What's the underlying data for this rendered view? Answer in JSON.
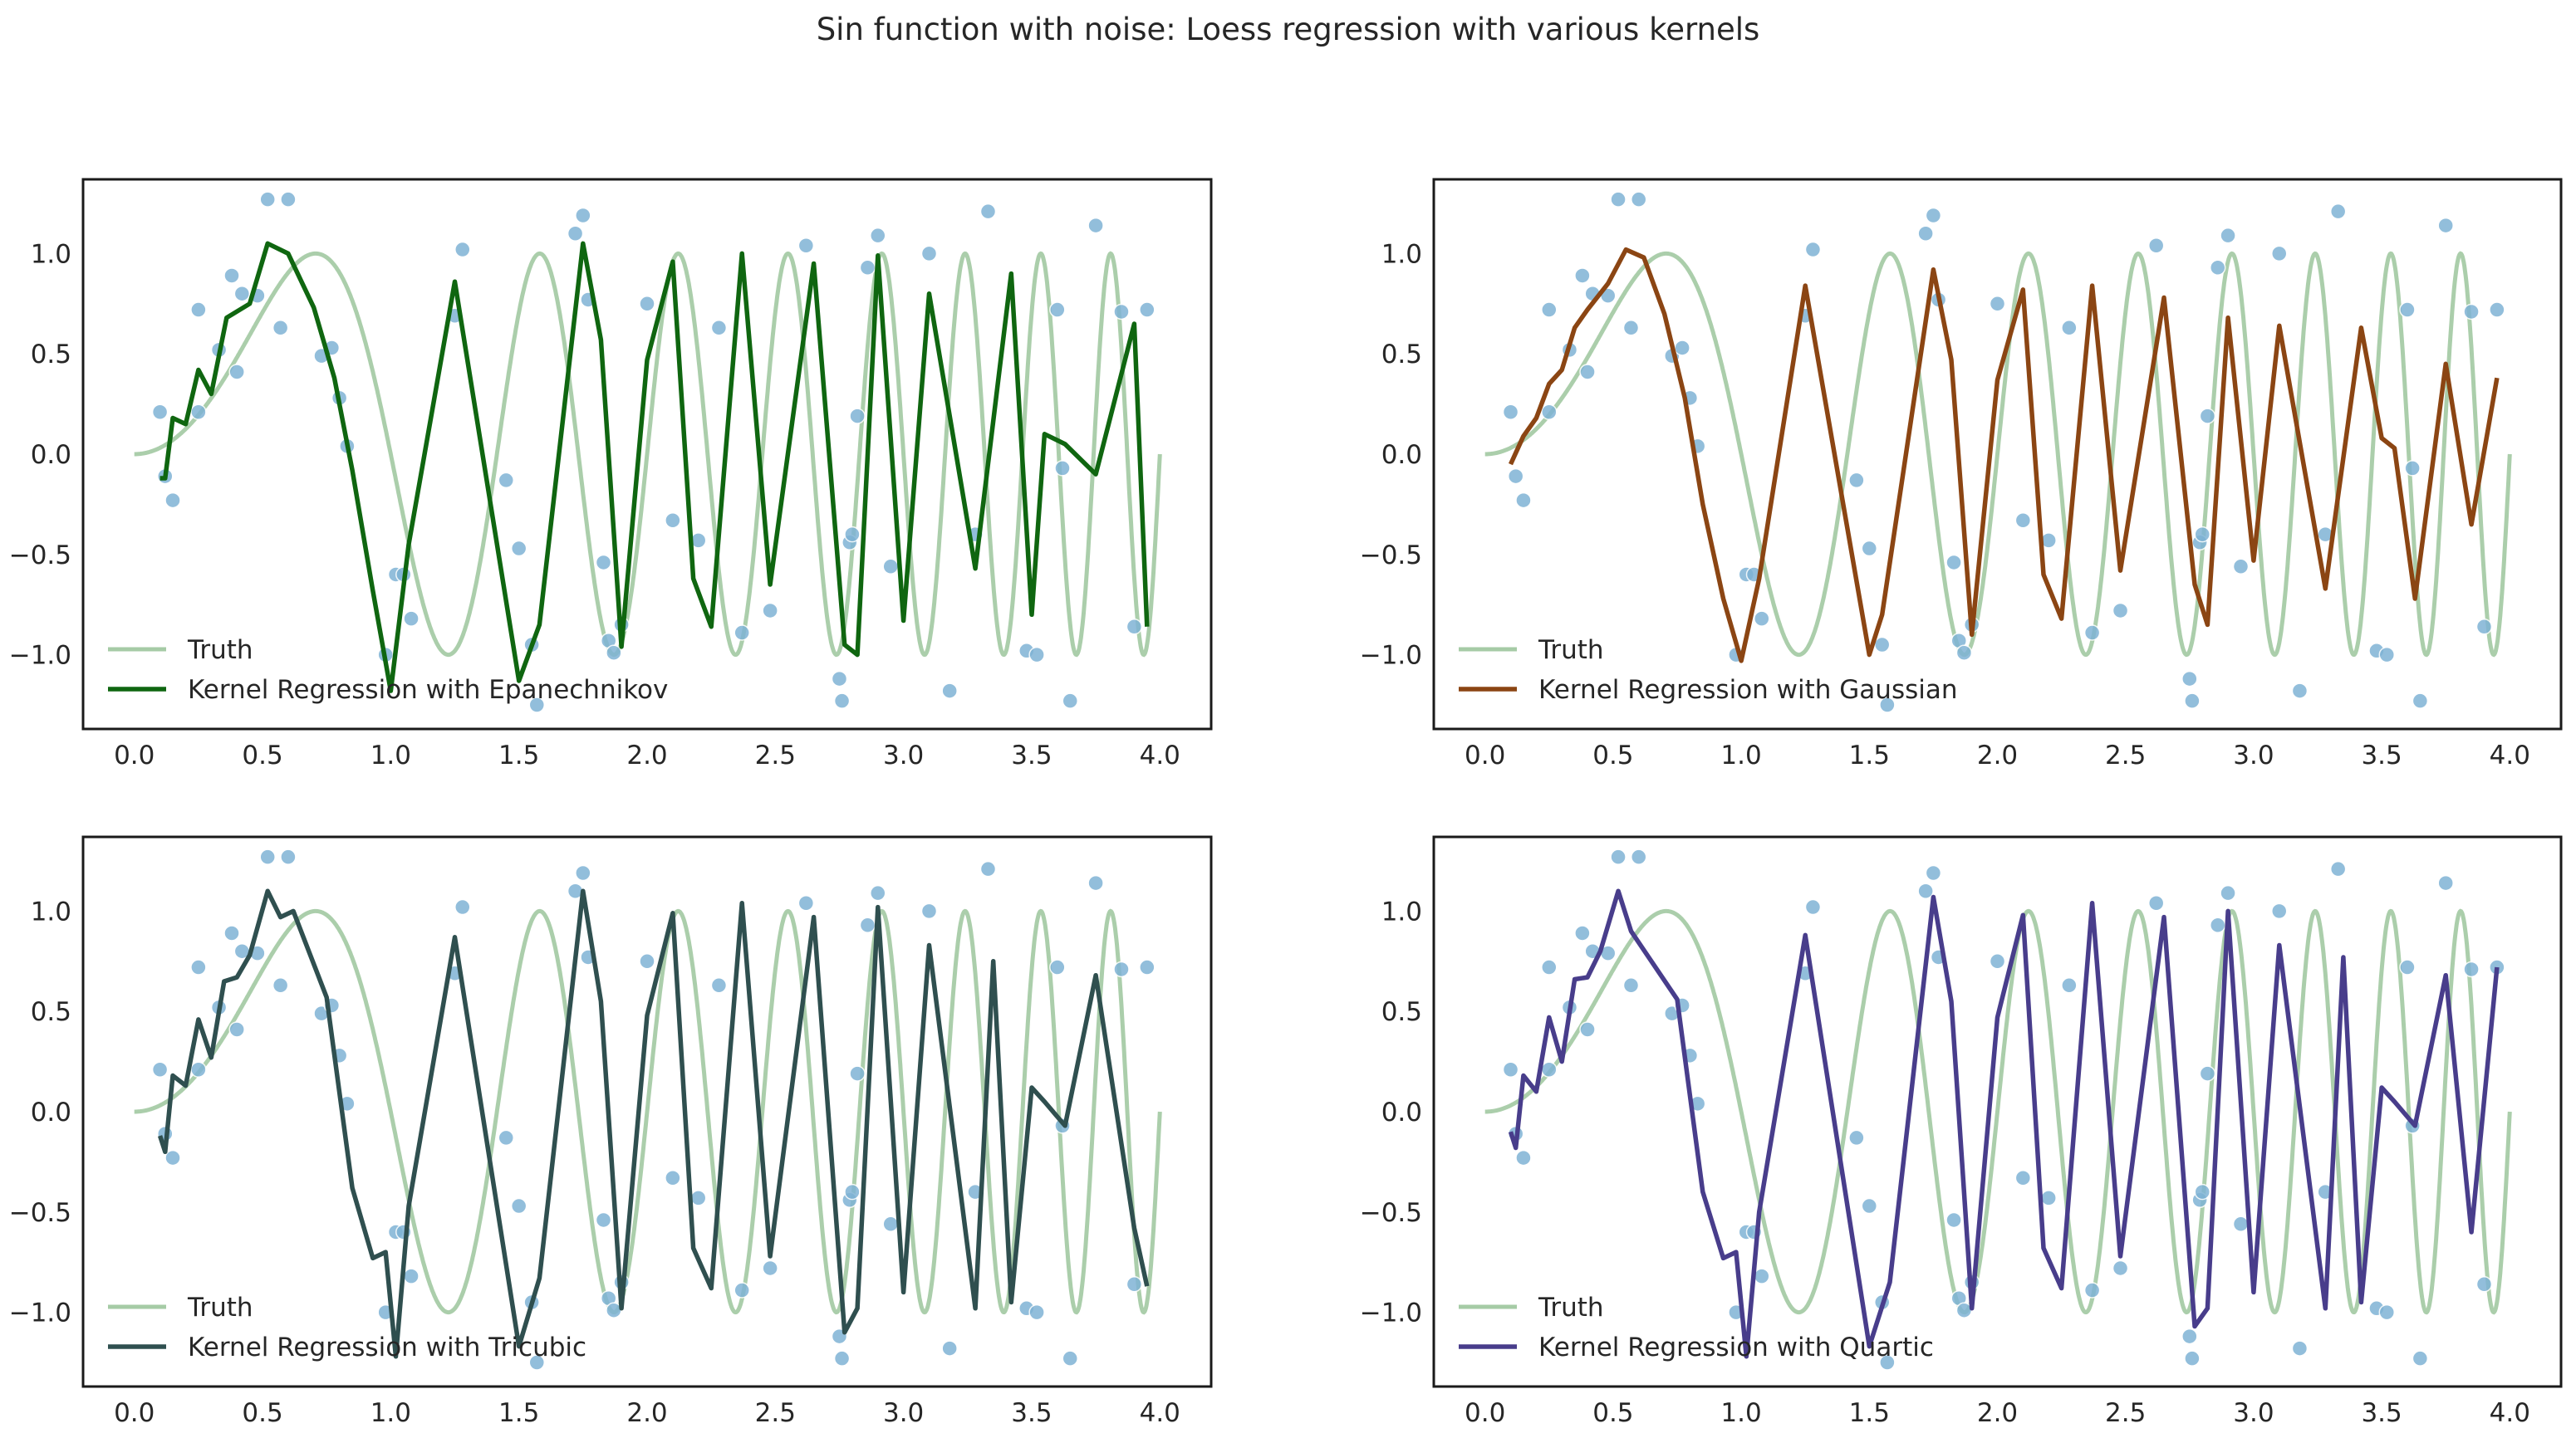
{
  "suptitle": "Sin function with noise: Loess regression with various kernels",
  "colors": {
    "truth": "#a6cba6",
    "scatter": "#7fb3d5",
    "frame": "#1a1a1a"
  },
  "chart_data": [
    {
      "type": "line",
      "panel": "top-left",
      "xlim": [
        -0.2,
        4.2
      ],
      "ylim": [
        -1.37,
        1.37
      ],
      "xticks": [
        "0.0",
        "0.5",
        "1.0",
        "1.5",
        "2.0",
        "2.5",
        "3.0",
        "3.5",
        "4.0"
      ],
      "yticks": [
        "−1.0",
        "−0.5",
        "0.0",
        "0.5",
        "1.0"
      ],
      "grid": false,
      "legend": "lower-left",
      "series": [
        {
          "name": "Truth",
          "color": "#a6cba6",
          "kind": "truth"
        },
        {
          "name": "Kernel Regression with Epanechnikov",
          "color": "#0f6610",
          "kind": "fit",
          "x": [
            0.1,
            0.12,
            0.15,
            0.2,
            0.25,
            0.3,
            0.36,
            0.45,
            0.52,
            0.6,
            0.7,
            0.78,
            0.85,
            0.93,
            1.0,
            1.07,
            1.25,
            1.5,
            1.58,
            1.75,
            1.82,
            1.9,
            2.0,
            2.1,
            2.18,
            2.25,
            2.37,
            2.48,
            2.65,
            2.77,
            2.82,
            2.9,
            3.0,
            3.1,
            3.28,
            3.42,
            3.5,
            3.55,
            3.63,
            3.75,
            3.9,
            3.95
          ],
          "y": [
            -0.12,
            -0.12,
            0.18,
            0.15,
            0.42,
            0.3,
            0.68,
            0.75,
            1.05,
            1.0,
            0.73,
            0.38,
            -0.08,
            -0.68,
            -1.18,
            -0.45,
            0.86,
            -1.13,
            -0.85,
            1.05,
            0.57,
            -0.96,
            0.47,
            0.96,
            -0.62,
            -0.86,
            1.0,
            -0.65,
            0.95,
            -0.95,
            -1.0,
            0.99,
            -0.83,
            0.8,
            -0.57,
            0.9,
            -0.8,
            0.1,
            0.05,
            -0.1,
            0.65,
            -0.86
          ]
        }
      ],
      "points": {
        "x": [
          0.1,
          0.12,
          0.15,
          0.25,
          0.25,
          0.33,
          0.38,
          0.4,
          0.42,
          0.48,
          0.52,
          0.57,
          0.6,
          0.73,
          0.77,
          0.8,
          0.83,
          0.98,
          1.02,
          1.05,
          1.08,
          1.25,
          1.28,
          1.45,
          1.5,
          1.55,
          1.57,
          1.72,
          1.75,
          1.77,
          1.83,
          1.85,
          1.87,
          1.9,
          2.0,
          2.1,
          2.2,
          2.28,
          2.37,
          2.48,
          2.62,
          2.75,
          2.76,
          2.79,
          2.8,
          2.82,
          2.86,
          2.9,
          2.95,
          3.1,
          3.18,
          3.28,
          3.33,
          3.48,
          3.52,
          3.6,
          3.62,
          3.65,
          3.75,
          3.85,
          3.9,
          3.95
        ],
        "y": [
          0.21,
          -0.11,
          -0.23,
          0.72,
          0.21,
          0.52,
          0.89,
          0.41,
          0.8,
          0.79,
          1.27,
          0.63,
          1.27,
          0.49,
          0.53,
          0.28,
          0.04,
          -1.0,
          -0.6,
          -0.6,
          -0.82,
          0.69,
          1.02,
          -0.13,
          -0.47,
          -0.95,
          -1.25,
          1.1,
          1.19,
          0.77,
          -0.54,
          -0.93,
          -0.99,
          -0.85,
          0.75,
          -0.33,
          -0.43,
          0.63,
          -0.89,
          -0.78,
          1.04,
          -1.12,
          -1.23,
          -0.44,
          -0.4,
          0.19,
          0.93,
          1.09,
          -0.56,
          1.0,
          -1.18,
          -0.4,
          1.21,
          -0.98,
          -1.0,
          0.72,
          -0.07,
          -1.23,
          1.14,
          0.71,
          -0.86,
          0.72
        ]
      }
    },
    {
      "type": "line",
      "panel": "top-right",
      "xlim": [
        -0.2,
        4.2
      ],
      "ylim": [
        -1.37,
        1.37
      ],
      "xticks": [
        "0.0",
        "0.5",
        "1.0",
        "1.5",
        "2.0",
        "2.5",
        "3.0",
        "3.5",
        "4.0"
      ],
      "yticks": [
        "−1.0",
        "−0.5",
        "0.0",
        "0.5",
        "1.0"
      ],
      "grid": false,
      "legend": "lower-left",
      "series": [
        {
          "name": "Truth",
          "color": "#a6cba6",
          "kind": "truth"
        },
        {
          "name": "Kernel Regression with Gaussian",
          "color": "#8b4513",
          "kind": "fit",
          "x": [
            0.1,
            0.15,
            0.2,
            0.25,
            0.3,
            0.35,
            0.4,
            0.48,
            0.55,
            0.62,
            0.7,
            0.78,
            0.85,
            0.93,
            1.0,
            1.07,
            1.25,
            1.5,
            1.55,
            1.75,
            1.82,
            1.9,
            2.0,
            2.1,
            2.18,
            2.25,
            2.37,
            2.48,
            2.65,
            2.77,
            2.82,
            2.9,
            3.0,
            3.1,
            3.28,
            3.42,
            3.5,
            3.55,
            3.63,
            3.75,
            3.85,
            3.95
          ],
          "y": [
            -0.05,
            0.09,
            0.18,
            0.35,
            0.42,
            0.63,
            0.72,
            0.85,
            1.02,
            0.98,
            0.7,
            0.28,
            -0.25,
            -0.72,
            -1.03,
            -0.62,
            0.84,
            -1.0,
            -0.8,
            0.92,
            0.47,
            -0.9,
            0.37,
            0.82,
            -0.6,
            -0.82,
            0.84,
            -0.58,
            0.78,
            -0.65,
            -0.85,
            0.68,
            -0.53,
            0.64,
            -0.67,
            0.63,
            0.08,
            0.03,
            -0.72,
            0.45,
            -0.35,
            0.38
          ]
        }
      ],
      "points": {
        "x": [
          0.1,
          0.12,
          0.15,
          0.25,
          0.25,
          0.33,
          0.38,
          0.4,
          0.42,
          0.48,
          0.52,
          0.57,
          0.6,
          0.73,
          0.77,
          0.8,
          0.83,
          0.98,
          1.02,
          1.05,
          1.08,
          1.25,
          1.28,
          1.45,
          1.5,
          1.55,
          1.57,
          1.72,
          1.75,
          1.77,
          1.83,
          1.85,
          1.87,
          1.9,
          2.0,
          2.1,
          2.2,
          2.28,
          2.37,
          2.48,
          2.62,
          2.75,
          2.76,
          2.79,
          2.8,
          2.82,
          2.86,
          2.9,
          2.95,
          3.1,
          3.18,
          3.28,
          3.33,
          3.48,
          3.52,
          3.6,
          3.62,
          3.65,
          3.75,
          3.85,
          3.9,
          3.95
        ],
        "y": [
          0.21,
          -0.11,
          -0.23,
          0.72,
          0.21,
          0.52,
          0.89,
          0.41,
          0.8,
          0.79,
          1.27,
          0.63,
          1.27,
          0.49,
          0.53,
          0.28,
          0.04,
          -1.0,
          -0.6,
          -0.6,
          -0.82,
          0.69,
          1.02,
          -0.13,
          -0.47,
          -0.95,
          -1.25,
          1.1,
          1.19,
          0.77,
          -0.54,
          -0.93,
          -0.99,
          -0.85,
          0.75,
          -0.33,
          -0.43,
          0.63,
          -0.89,
          -0.78,
          1.04,
          -1.12,
          -1.23,
          -0.44,
          -0.4,
          0.19,
          0.93,
          1.09,
          -0.56,
          1.0,
          -1.18,
          -0.4,
          1.21,
          -0.98,
          -1.0,
          0.72,
          -0.07,
          -1.23,
          1.14,
          0.71,
          -0.86,
          0.72
        ]
      }
    },
    {
      "type": "line",
      "panel": "bottom-left",
      "xlim": [
        -0.2,
        4.2
      ],
      "ylim": [
        -1.37,
        1.37
      ],
      "xticks": [
        "0.0",
        "0.5",
        "1.0",
        "1.5",
        "2.0",
        "2.5",
        "3.0",
        "3.5",
        "4.0"
      ],
      "yticks": [
        "−1.0",
        "−0.5",
        "0.0",
        "0.5",
        "1.0"
      ],
      "grid": false,
      "legend": "lower-left",
      "series": [
        {
          "name": "Truth",
          "color": "#a6cba6",
          "kind": "truth"
        },
        {
          "name": "Kernel Regression with Tricubic",
          "color": "#2f4f4f",
          "kind": "fit",
          "x": [
            0.1,
            0.12,
            0.15,
            0.2,
            0.25,
            0.3,
            0.35,
            0.4,
            0.45,
            0.52,
            0.57,
            0.62,
            0.75,
            0.85,
            0.93,
            0.98,
            1.02,
            1.07,
            1.25,
            1.5,
            1.58,
            1.75,
            1.82,
            1.9,
            2.0,
            2.1,
            2.18,
            2.25,
            2.37,
            2.48,
            2.65,
            2.77,
            2.82,
            2.9,
            3.0,
            3.1,
            3.28,
            3.35,
            3.42,
            3.5,
            3.55,
            3.63,
            3.75,
            3.9,
            3.95
          ],
          "y": [
            -0.12,
            -0.2,
            0.18,
            0.13,
            0.46,
            0.27,
            0.65,
            0.67,
            0.78,
            1.1,
            0.97,
            1.0,
            0.57,
            -0.38,
            -0.73,
            -0.7,
            -1.22,
            -0.47,
            0.87,
            -1.17,
            -0.83,
            1.1,
            0.55,
            -0.98,
            0.48,
            0.99,
            -0.68,
            -0.88,
            1.04,
            -0.72,
            0.97,
            -1.1,
            -0.98,
            1.02,
            -0.9,
            0.83,
            -0.98,
            0.75,
            -0.95,
            0.12,
            0.05,
            -0.07,
            0.68,
            -0.58,
            -0.87
          ]
        }
      ],
      "points": {
        "x": [
          0.1,
          0.12,
          0.15,
          0.25,
          0.25,
          0.33,
          0.38,
          0.4,
          0.42,
          0.48,
          0.52,
          0.57,
          0.6,
          0.73,
          0.77,
          0.8,
          0.83,
          0.98,
          1.02,
          1.05,
          1.08,
          1.25,
          1.28,
          1.45,
          1.5,
          1.55,
          1.57,
          1.72,
          1.75,
          1.77,
          1.83,
          1.85,
          1.87,
          1.9,
          2.0,
          2.1,
          2.2,
          2.28,
          2.37,
          2.48,
          2.62,
          2.75,
          2.76,
          2.79,
          2.8,
          2.82,
          2.86,
          2.9,
          2.95,
          3.1,
          3.18,
          3.28,
          3.33,
          3.48,
          3.52,
          3.6,
          3.62,
          3.65,
          3.75,
          3.85,
          3.9,
          3.95
        ],
        "y": [
          0.21,
          -0.11,
          -0.23,
          0.72,
          0.21,
          0.52,
          0.89,
          0.41,
          0.8,
          0.79,
          1.27,
          0.63,
          1.27,
          0.49,
          0.53,
          0.28,
          0.04,
          -1.0,
          -0.6,
          -0.6,
          -0.82,
          0.69,
          1.02,
          -0.13,
          -0.47,
          -0.95,
          -1.25,
          1.1,
          1.19,
          0.77,
          -0.54,
          -0.93,
          -0.99,
          -0.85,
          0.75,
          -0.33,
          -0.43,
          0.63,
          -0.89,
          -0.78,
          1.04,
          -1.12,
          -1.23,
          -0.44,
          -0.4,
          0.19,
          0.93,
          1.09,
          -0.56,
          1.0,
          -1.18,
          -0.4,
          1.21,
          -0.98,
          -1.0,
          0.72,
          -0.07,
          -1.23,
          1.14,
          0.71,
          -0.86,
          0.72
        ]
      }
    },
    {
      "type": "line",
      "panel": "bottom-right",
      "xlim": [
        -0.2,
        4.2
      ],
      "ylim": [
        -1.37,
        1.37
      ],
      "xticks": [
        "0.0",
        "0.5",
        "1.0",
        "1.5",
        "2.0",
        "2.5",
        "3.0",
        "3.5",
        "4.0"
      ],
      "yticks": [
        "−1.0",
        "−0.5",
        "0.0",
        "0.5",
        "1.0"
      ],
      "grid": false,
      "legend": "lower-left",
      "series": [
        {
          "name": "Truth",
          "color": "#a6cba6",
          "kind": "truth"
        },
        {
          "name": "Kernel Regression with Quartic",
          "color": "#483d8b",
          "kind": "fit",
          "x": [
            0.1,
            0.12,
            0.15,
            0.2,
            0.25,
            0.3,
            0.35,
            0.4,
            0.45,
            0.52,
            0.57,
            0.75,
            0.85,
            0.93,
            0.98,
            1.02,
            1.07,
            1.25,
            1.5,
            1.58,
            1.75,
            1.82,
            1.9,
            2.0,
            2.1,
            2.18,
            2.25,
            2.37,
            2.48,
            2.65,
            2.77,
            2.82,
            2.9,
            3.0,
            3.1,
            3.28,
            3.35,
            3.42,
            3.5,
            3.55,
            3.63,
            3.75,
            3.85,
            3.95
          ],
          "y": [
            -0.1,
            -0.18,
            0.18,
            0.1,
            0.47,
            0.25,
            0.66,
            0.67,
            0.8,
            1.1,
            0.9,
            0.56,
            -0.4,
            -0.73,
            -0.7,
            -1.22,
            -0.5,
            0.88,
            -1.17,
            -0.85,
            1.07,
            0.55,
            -0.98,
            0.47,
            0.98,
            -0.68,
            -0.88,
            1.04,
            -0.72,
            0.97,
            -1.07,
            -0.98,
            1.0,
            -0.9,
            0.83,
            -0.98,
            0.77,
            -0.95,
            0.12,
            0.05,
            -0.07,
            0.68,
            -0.6,
            0.72
          ]
        }
      ],
      "points": {
        "x": [
          0.1,
          0.12,
          0.15,
          0.25,
          0.25,
          0.33,
          0.38,
          0.4,
          0.42,
          0.48,
          0.52,
          0.57,
          0.6,
          0.73,
          0.77,
          0.8,
          0.83,
          0.98,
          1.02,
          1.05,
          1.08,
          1.25,
          1.28,
          1.45,
          1.5,
          1.55,
          1.57,
          1.72,
          1.75,
          1.77,
          1.83,
          1.85,
          1.87,
          1.9,
          2.0,
          2.1,
          2.2,
          2.28,
          2.37,
          2.48,
          2.62,
          2.75,
          2.76,
          2.79,
          2.8,
          2.82,
          2.86,
          2.9,
          2.95,
          3.1,
          3.18,
          3.28,
          3.33,
          3.48,
          3.52,
          3.6,
          3.62,
          3.65,
          3.75,
          3.85,
          3.9,
          3.95
        ],
        "y": [
          0.21,
          -0.11,
          -0.23,
          0.72,
          0.21,
          0.52,
          0.89,
          0.41,
          0.8,
          0.79,
          1.27,
          0.63,
          1.27,
          0.49,
          0.53,
          0.28,
          0.04,
          -1.0,
          -0.6,
          -0.6,
          -0.82,
          0.69,
          1.02,
          -0.13,
          -0.47,
          -0.95,
          -1.25,
          1.1,
          1.19,
          0.77,
          -0.54,
          -0.93,
          -0.99,
          -0.85,
          0.75,
          -0.33,
          -0.43,
          0.63,
          -0.89,
          -0.78,
          1.04,
          -1.12,
          -1.23,
          -0.44,
          -0.4,
          0.19,
          0.93,
          1.09,
          -0.56,
          1.0,
          -1.18,
          -0.4,
          1.21,
          -0.98,
          -1.0,
          0.72,
          -0.07,
          -1.23,
          1.14,
          0.71,
          -0.86,
          0.72
        ]
      }
    }
  ]
}
